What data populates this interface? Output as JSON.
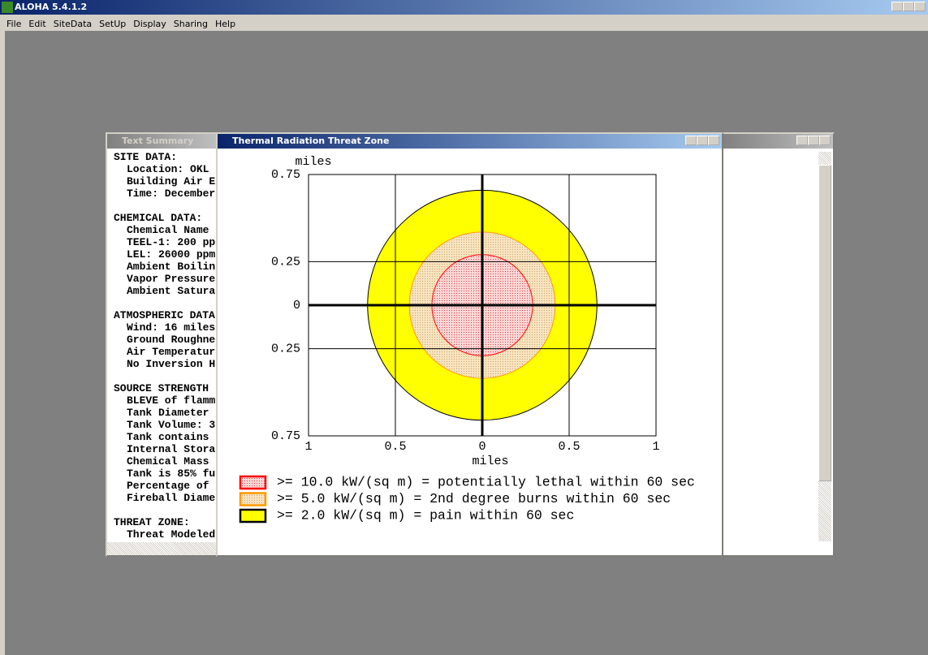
{
  "app": {
    "title": "ALOHA 5.4.1.2",
    "menu": [
      "File",
      "Edit",
      "SiteData",
      "SetUp",
      "Display",
      "Sharing",
      "Help"
    ]
  },
  "text_summary": {
    "title": "Text Summary",
    "sections": [
      {
        "heading": "SITE DATA:",
        "lines": [
          "Location: OKL",
          "Building Air E",
          "Time: December"
        ]
      },
      {
        "heading": "CHEMICAL DATA:",
        "lines": [
          "Chemical Name",
          "TEEL-1: 200 pp",
          "LEL: 26000 ppm",
          "Ambient Boilin",
          "Vapor Pressure",
          "Ambient Satura"
        ]
      },
      {
        "heading": "ATMOSPHERIC DATA",
        "lines": [
          "Wind: 16 miles",
          "Ground Roughne",
          "Air Temperatur",
          "No Inversion H"
        ]
      },
      {
        "heading": "SOURCE STRENGTH",
        "lines": [
          "BLEVE of flamm",
          "Tank Diameter",
          "Tank Volume: 3",
          "Tank contains",
          "Internal Stora",
          "Chemical Mass",
          "Tank is 85% fu",
          "Percentage of",
          "Fireball Diame"
        ]
      },
      {
        "heading": "THREAT ZONE:",
        "lines": [
          "Threat Modeled"
        ]
      }
    ]
  },
  "threat_zone": {
    "title": "Thermal Radiation Threat Zone",
    "chart_data": {
      "type": "threat_zone",
      "y_label": "miles",
      "x_label": "miles",
      "xlim": [
        -1,
        1
      ],
      "ylim": [
        -0.75,
        0.75
      ],
      "xticks": [
        {
          "value": -1,
          "label": "1"
        },
        {
          "value": -0.5,
          "label": "0.5"
        },
        0,
        0.5,
        1
      ],
      "yticks": [
        0.75,
        0.25,
        0,
        {
          "value": -0.25,
          "label": "0.25"
        },
        {
          "value": -0.75,
          "label": "0.75"
        }
      ],
      "grid": true,
      "zones": [
        {
          "label": ">= 10.0 kW/(sq m) = potentially lethal within 60 sec",
          "radius": 0.29,
          "stroke": "#ff0000",
          "fill": "#ffd6d6"
        },
        {
          "label": ">= 5.0 kW/(sq m) = 2nd degree burns within 60 sec",
          "radius": 0.42,
          "stroke": "#ff9900",
          "fill": "#f7e3bf"
        },
        {
          "label": ">= 2.0 kW/(sq m) = pain within 60 sec",
          "radius": 0.66,
          "stroke": "#000000",
          "fill": "#ffff00"
        }
      ]
    }
  }
}
